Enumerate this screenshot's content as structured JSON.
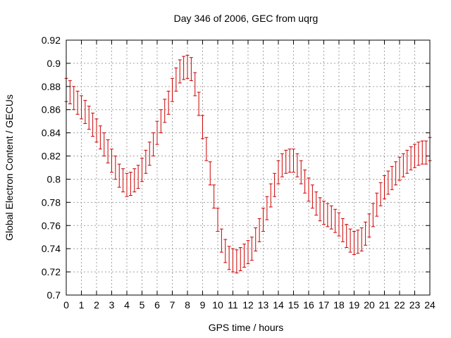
{
  "chart_data": {
    "type": "scatter",
    "title": "Day 346 of 2006, GEC from uqrg",
    "xlabel": "GPS time / hours",
    "ylabel": "Global Electron Content / GECUs",
    "xlim": [
      0,
      24
    ],
    "ylim": [
      0.7,
      0.92
    ],
    "xticks": [
      "0",
      "1",
      "2",
      "3",
      "4",
      "5",
      "6",
      "7",
      "8",
      "9",
      "10",
      "11",
      "12",
      "13",
      "14",
      "15",
      "16",
      "17",
      "18",
      "19",
      "20",
      "21",
      "22",
      "23",
      "24"
    ],
    "yticks": [
      "0.7",
      "0.72",
      "0.74",
      "0.76",
      "0.78",
      "0.8",
      "0.82",
      "0.84",
      "0.86",
      "0.88",
      "0.9",
      "0.92"
    ],
    "grid": true,
    "error": 0.01,
    "color": "#cc0000",
    "series": [
      {
        "x": [
          0,
          0.25,
          0.5,
          0.75,
          1,
          1.25,
          1.5,
          1.75,
          2,
          2.25,
          2.5,
          2.75,
          3,
          3.25,
          3.5,
          3.75,
          4,
          4.25,
          4.5,
          4.75,
          5,
          5.25,
          5.5,
          5.75,
          6,
          6.25,
          6.5,
          6.75,
          7,
          7.25,
          7.5,
          7.75,
          8,
          8.25,
          8.5,
          8.75,
          9,
          9.25,
          9.5,
          9.75,
          10,
          10.25,
          10.5,
          10.75,
          11,
          11.25,
          11.5,
          11.75,
          12,
          12.25,
          12.5,
          12.75,
          13,
          13.25,
          13.5,
          13.75,
          14,
          14.25,
          14.5,
          14.75,
          15,
          15.25,
          15.5,
          15.75,
          16,
          16.25,
          16.5,
          16.75,
          17,
          17.25,
          17.5,
          17.75,
          18,
          18.25,
          18.5,
          18.75,
          19,
          19.25,
          19.5,
          19.75,
          20,
          20.25,
          20.5,
          20.75,
          21,
          21.25,
          21.5,
          21.75,
          22,
          22.25,
          22.5,
          22.75,
          23,
          23.25,
          23.5,
          23.75,
          24
        ],
        "y": [
          0.877,
          0.875,
          0.87,
          0.866,
          0.862,
          0.858,
          0.853,
          0.847,
          0.842,
          0.836,
          0.83,
          0.824,
          0.816,
          0.81,
          0.803,
          0.799,
          0.795,
          0.796,
          0.799,
          0.802,
          0.808,
          0.815,
          0.822,
          0.83,
          0.84,
          0.85,
          0.859,
          0.866,
          0.877,
          0.886,
          0.893,
          0.896,
          0.897,
          0.895,
          0.882,
          0.865,
          0.845,
          0.826,
          0.805,
          0.785,
          0.765,
          0.747,
          0.738,
          0.732,
          0.73,
          0.729,
          0.731,
          0.734,
          0.737,
          0.74,
          0.748,
          0.756,
          0.765,
          0.775,
          0.786,
          0.795,
          0.806,
          0.812,
          0.815,
          0.816,
          0.816,
          0.812,
          0.806,
          0.798,
          0.791,
          0.785,
          0.779,
          0.774,
          0.771,
          0.769,
          0.767,
          0.764,
          0.761,
          0.756,
          0.751,
          0.747,
          0.745,
          0.746,
          0.748,
          0.753,
          0.76,
          0.769,
          0.778,
          0.787,
          0.793,
          0.797,
          0.801,
          0.805,
          0.809,
          0.812,
          0.815,
          0.818,
          0.82,
          0.822,
          0.823,
          0.823,
          0.826
        ]
      }
    ]
  }
}
